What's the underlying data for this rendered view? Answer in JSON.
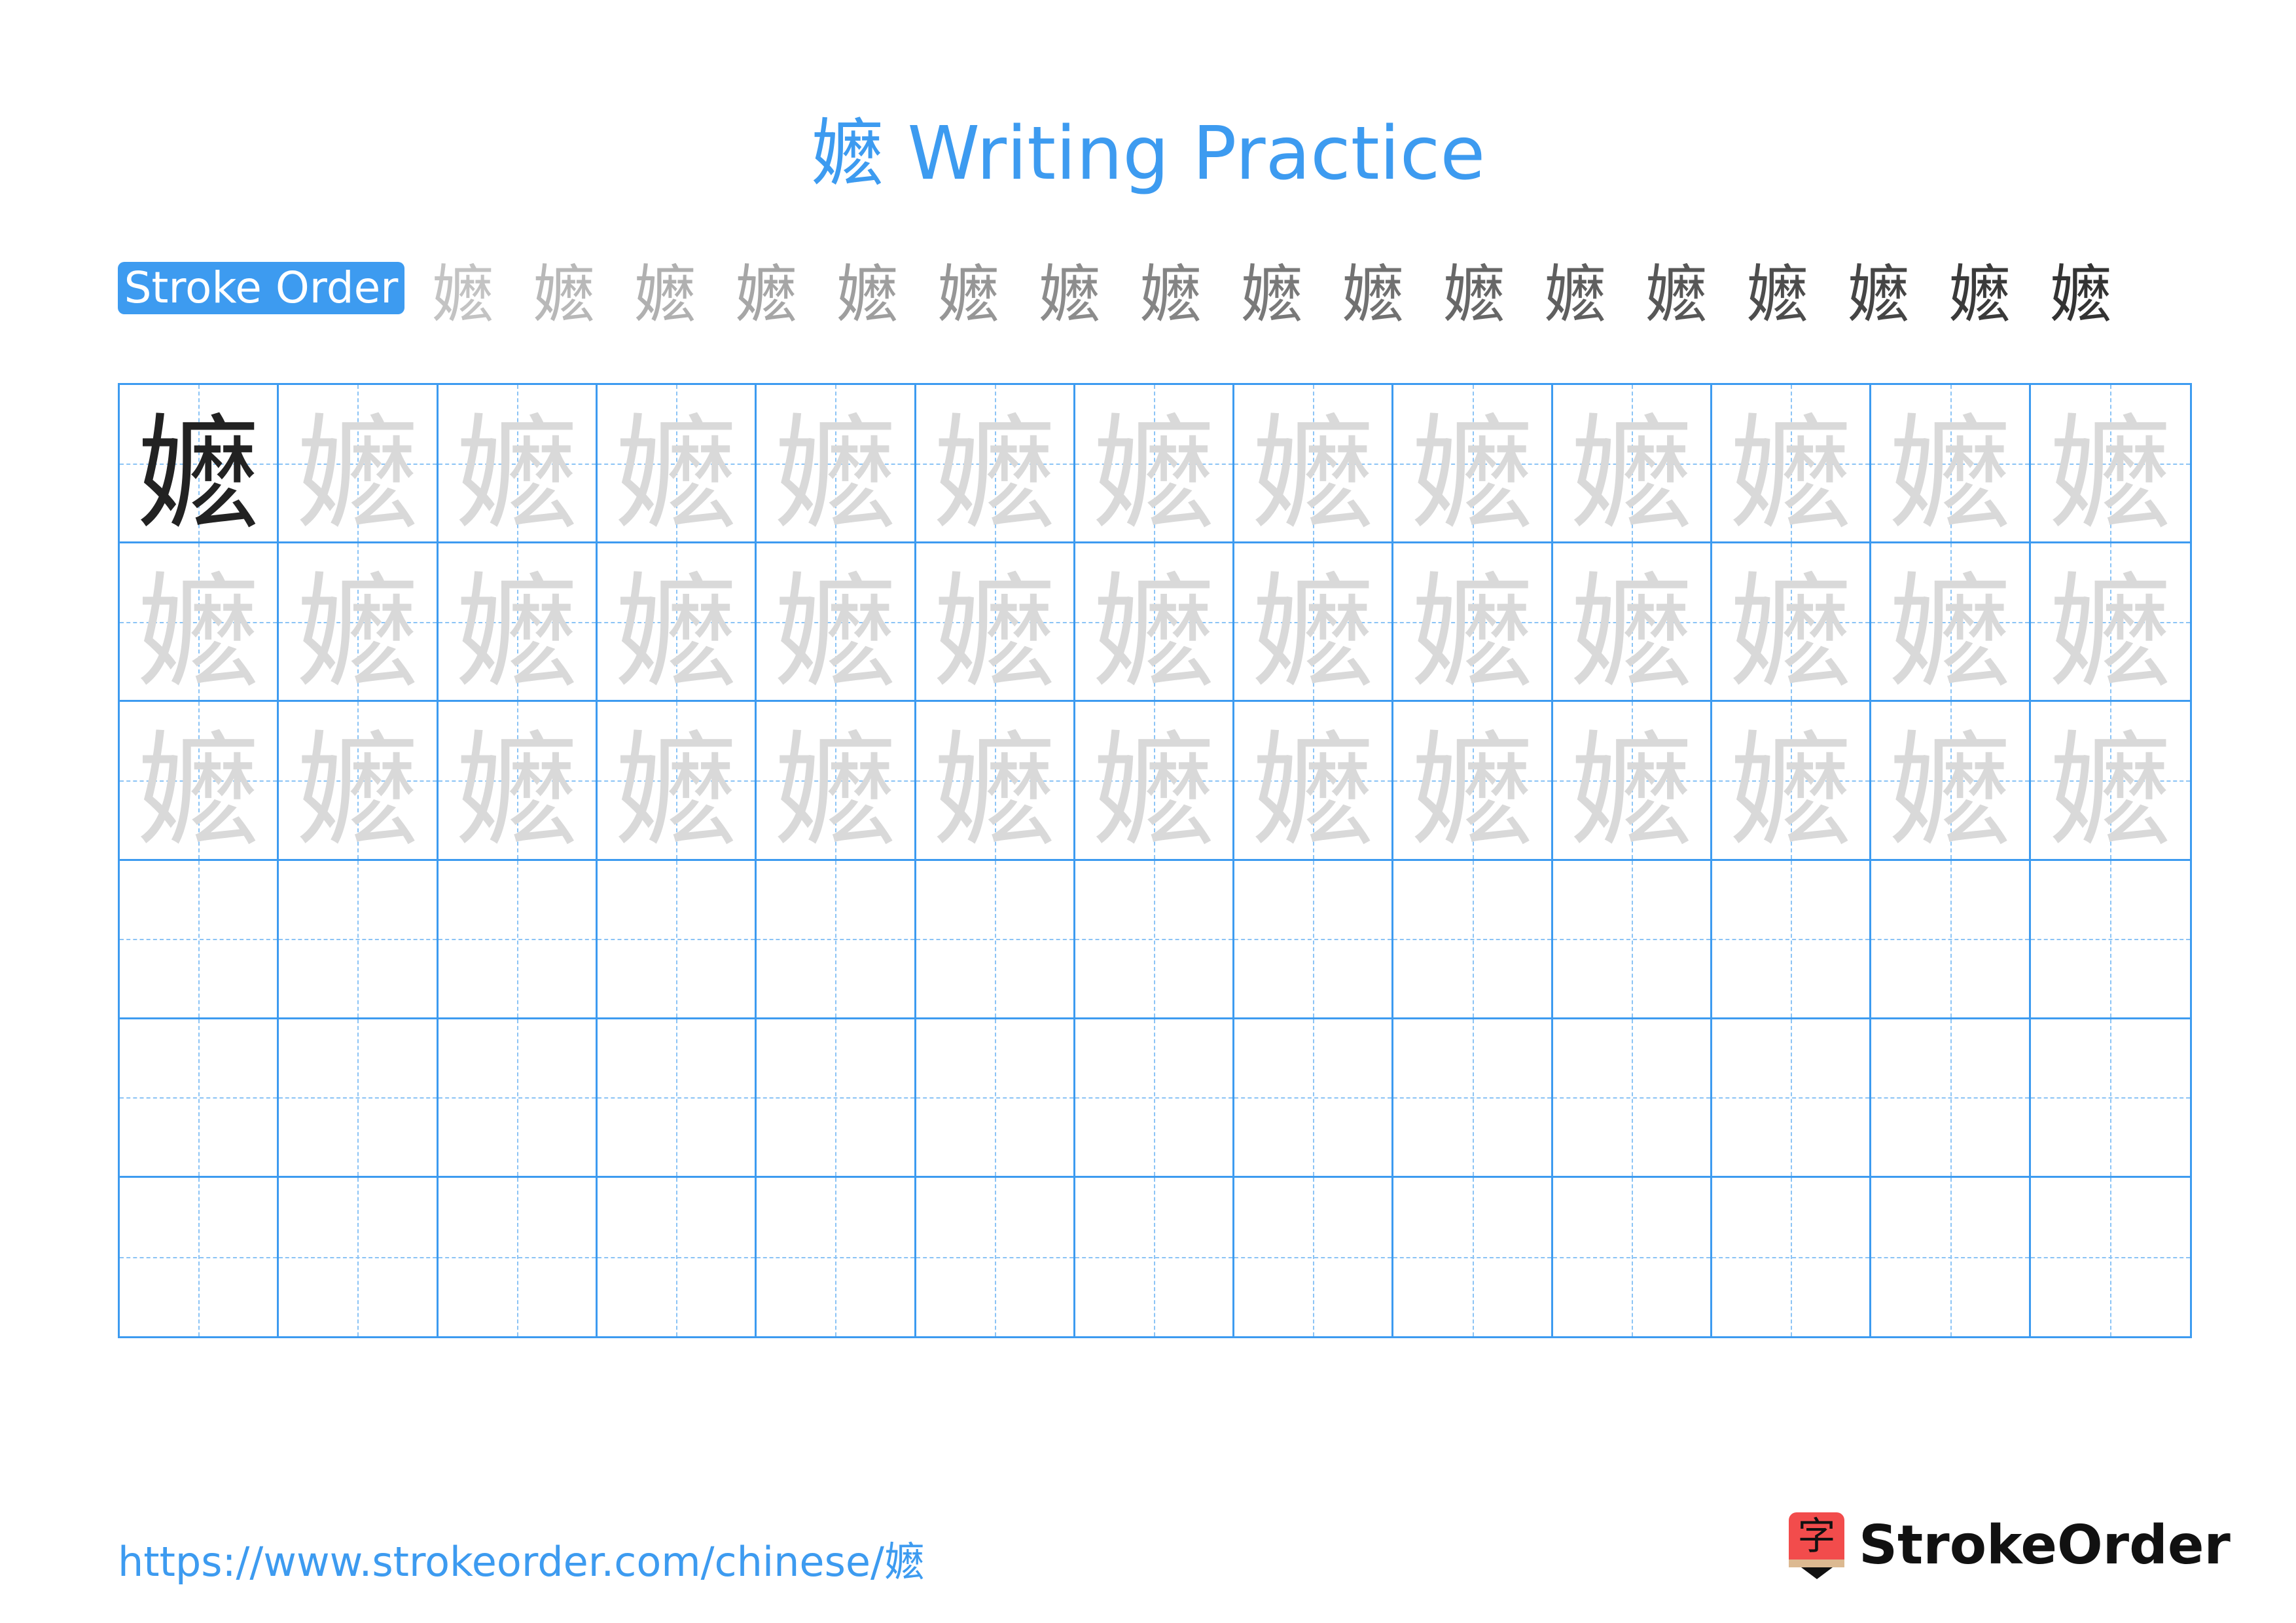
{
  "title": "嬷 Writing Practice",
  "character": "嬷",
  "stroke_order_label": "Stroke Order",
  "stroke_count": 17,
  "grid": {
    "columns": 13,
    "rows": 6,
    "trace_rows": 3
  },
  "colors": {
    "accent": "#3d9bf0",
    "trace": "#d9d9d9",
    "current_stroke": "#ee3333",
    "logo_red": "#f24c4c"
  },
  "footer": {
    "url": "https://www.strokeorder.com/chinese/嬷",
    "logo_glyph": "字",
    "brand": "StrokeOrder"
  }
}
